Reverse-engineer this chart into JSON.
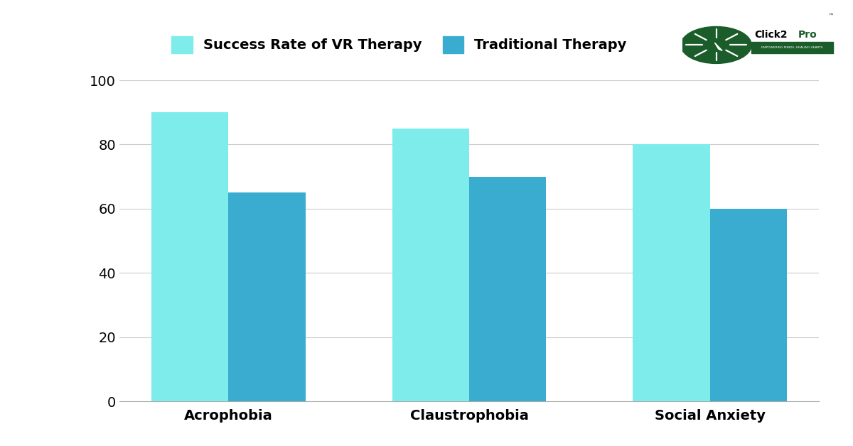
{
  "categories": [
    "Acrophobia",
    "Claustrophobia",
    "Social Anxiety"
  ],
  "vr_therapy": [
    90,
    85,
    80
  ],
  "traditional_therapy": [
    65,
    70,
    60
  ],
  "vr_color": "#7EECEA",
  "traditional_color": "#3AACCF",
  "background_color": "#FFFFFF",
  "legend_vr_label": "Success Rate of VR Therapy",
  "legend_trad_label": "Traditional Therapy",
  "ylim": [
    0,
    100
  ],
  "yticks": [
    0,
    20,
    40,
    60,
    80,
    100
  ],
  "bar_width": 0.32,
  "tick_fontsize": 14,
  "legend_fontsize": 14,
  "grid_color": "#CCCCCC",
  "logo_circle_color": "#1a5c2a",
  "logo_text_color": "#1a5c2a",
  "logo_banner_color": "#1a5c2a"
}
